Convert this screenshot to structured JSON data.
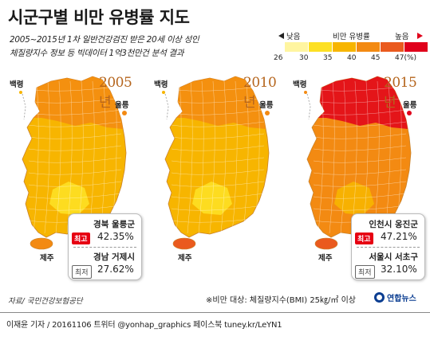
{
  "title": "시군구별 비만 유병률 지도",
  "subtitle_line1": "2005~2015년 1차 일반건강검진 받은 20세 이상 성인",
  "subtitle_line2": "체질량지수 정보 등 빅데이터 1억3천만건 분석 결과",
  "legend": {
    "low_label": "낮음",
    "mid_label": "비만 유병률",
    "high_label": "높음",
    "ticks": [
      "26",
      "30",
      "35",
      "40",
      "45",
      "47(%)"
    ],
    "colors": [
      "#fff5a0",
      "#fde024",
      "#f7b500",
      "#f38a12",
      "#ea5a1e",
      "#e0001b"
    ]
  },
  "maps": [
    {
      "year": "2005년",
      "baengnyeong": "백령",
      "ulleung": "울릉",
      "jeju": "제주",
      "base_color": "#f7b500",
      "north_color": "#f38a12",
      "light_color": "#fde024",
      "jeju_color": "#f38a12"
    },
    {
      "year": "2010년",
      "baengnyeong": "백령",
      "ulleung": "울릉",
      "jeju": "제주",
      "base_color": "#f7b500",
      "north_color": "#f38a12",
      "light_color": "#fde024",
      "jeju_color": "#ea5a1e"
    },
    {
      "year": "2015년",
      "baengnyeong": "백령",
      "ulleung": "울릉",
      "jeju": "제주",
      "base_color": "#f38a12",
      "north_color": "#e0001b",
      "light_color": "#f7b500",
      "jeju_color": "#ea5a1e"
    }
  ],
  "callout_2005": {
    "max_region": "경북 울릉군",
    "max_badge": "최고",
    "max_value": "42.35%",
    "min_region": "경남 거제시",
    "min_badge": "최저",
    "min_value": "27.62%"
  },
  "callout_2015": {
    "max_region": "인천시 옹진군",
    "max_badge": "최고",
    "max_value": "47.21%",
    "min_region": "서울시 서초구",
    "min_badge": "최저",
    "min_value": "32.10%"
  },
  "footnote": "※비만 대상: 체질량지수(BMI) 25㎏/㎡ 이상",
  "source": "자료/ 국민건강보험공단",
  "logo": "연합뉴스",
  "credit": "이재윤 기자 / 20161106   트위터 @yonhap_graphics  페이스북 tuney.kr/LeYN1"
}
